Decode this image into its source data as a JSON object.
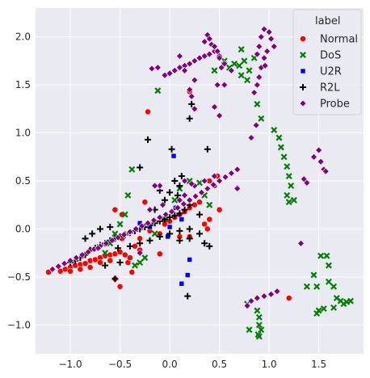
{
  "chart_data": {
    "type": "scatter",
    "title": "",
    "xlabel": "",
    "ylabel": "",
    "xlim": [
      -1.35,
      1.95
    ],
    "ylim": [
      -1.3,
      2.3
    ],
    "xticks": [
      -1.0,
      -0.5,
      0.0,
      0.5,
      1.0,
      1.5
    ],
    "xtick_labels": [
      "−1.0",
      "−0.5",
      "0.0",
      "0.5",
      "1.0",
      "1.5"
    ],
    "yticks": [
      -1.0,
      -0.5,
      0.0,
      0.5,
      1.0,
      1.5,
      2.0
    ],
    "ytick_labels": [
      "−1.0",
      "−0.5",
      "0.0",
      "0.5",
      "1.0",
      "1.5",
      "2.0"
    ],
    "grid": true,
    "background": "#eaeaf2",
    "legend": {
      "title": "label",
      "position": "top-right"
    },
    "series": [
      {
        "name": "Normal",
        "color": "#ff0000",
        "marker": "circle",
        "points": [
          [
            -1.22,
            -0.45
          ],
          [
            -1.1,
            -0.44
          ],
          [
            -1.05,
            -0.42
          ],
          [
            -1.0,
            -0.4
          ],
          [
            -0.95,
            -0.38
          ],
          [
            -0.9,
            -0.37
          ],
          [
            -0.85,
            -0.36
          ],
          [
            -0.8,
            -0.33
          ],
          [
            -0.75,
            -0.32
          ],
          [
            -0.7,
            -0.3
          ],
          [
            -0.65,
            -0.28
          ],
          [
            -0.6,
            -0.27
          ],
          [
            -0.55,
            -0.26
          ],
          [
            -0.5,
            -0.24
          ],
          [
            -1.0,
            -0.44
          ],
          [
            -0.9,
            -0.42
          ],
          [
            -0.8,
            -0.4
          ],
          [
            -0.7,
            -0.35
          ],
          [
            -0.6,
            -0.33
          ],
          [
            -0.45,
            -0.27
          ],
          [
            -0.42,
            -0.35
          ],
          [
            -0.4,
            -0.3
          ],
          [
            -0.38,
            -0.45
          ],
          [
            -0.5,
            -0.6
          ],
          [
            -0.55,
            -0.52
          ],
          [
            -0.48,
            -0.1
          ],
          [
            -0.48,
            0.15
          ],
          [
            -0.35,
            -0.18
          ],
          [
            -0.3,
            -0.1
          ],
          [
            -0.25,
            0.28
          ],
          [
            -0.2,
            -0.02
          ],
          [
            -0.1,
            -0.05
          ],
          [
            -0.05,
            0.05
          ],
          [
            0.0,
            0.08
          ],
          [
            0.05,
            0.12
          ],
          [
            0.1,
            0.15
          ],
          [
            0.15,
            0.18
          ],
          [
            0.2,
            0.22
          ],
          [
            0.25,
            0.25
          ],
          [
            0.3,
            0.28
          ],
          [
            0.35,
            0.05
          ],
          [
            0.4,
            0.1
          ],
          [
            0.4,
            0.5
          ],
          [
            0.45,
            0.45
          ],
          [
            0.48,
            0.55
          ],
          [
            0.5,
            0.2
          ],
          [
            0.38,
            0.0
          ],
          [
            -0.1,
            -0.26
          ],
          [
            0.1,
            -0.08
          ],
          [
            0.2,
            -0.08
          ],
          [
            -0.22,
            1.22
          ],
          [
            0.2,
            1.43
          ],
          [
            1.2,
            -0.72
          ],
          [
            -0.8,
            -0.22
          ],
          [
            -0.3,
            -0.22
          ],
          [
            -0.55,
            0.2
          ]
        ]
      },
      {
        "name": "DoS",
        "color": "#008000",
        "marker": "x",
        "points": [
          [
            -0.65,
            -0.25
          ],
          [
            -0.6,
            -0.15
          ],
          [
            -0.55,
            -0.05
          ],
          [
            -0.5,
            0.05
          ],
          [
            -0.45,
            0.15
          ],
          [
            -0.42,
            0.35
          ],
          [
            -0.38,
            0.62
          ],
          [
            -0.3,
            -0.35
          ],
          [
            -0.35,
            -0.38
          ],
          [
            -0.25,
            -0.3
          ],
          [
            -0.15,
            -0.05
          ],
          [
            -0.05,
            0.1
          ],
          [
            0.05,
            0.3
          ],
          [
            0.1,
            0.42
          ],
          [
            0.2,
            0.5
          ],
          [
            0.3,
            0.48
          ],
          [
            0.35,
            0.35
          ],
          [
            0.4,
            0.25
          ],
          [
            -0.12,
            1.44
          ],
          [
            0.45,
            1.65
          ],
          [
            0.55,
            1.75
          ],
          [
            0.65,
            1.72
          ],
          [
            0.7,
            1.7
          ],
          [
            0.75,
            1.75
          ],
          [
            0.8,
            1.65
          ],
          [
            0.85,
            1.78
          ],
          [
            0.6,
            1.68
          ],
          [
            0.72,
            1.6
          ],
          [
            0.78,
            1.55
          ],
          [
            0.72,
            1.87
          ],
          [
            0.88,
            1.3
          ],
          [
            0.92,
            1.15
          ],
          [
            1.05,
            1.03
          ],
          [
            1.1,
            0.95
          ],
          [
            1.12,
            0.85
          ],
          [
            1.15,
            0.75
          ],
          [
            1.18,
            0.65
          ],
          [
            1.2,
            0.55
          ],
          [
            1.22,
            0.45
          ],
          [
            1.18,
            0.35
          ],
          [
            1.2,
            0.28
          ],
          [
            1.25,
            0.3
          ],
          [
            1.52,
            -0.28
          ],
          [
            1.58,
            -0.28
          ],
          [
            1.6,
            -0.38
          ],
          [
            1.45,
            -0.48
          ],
          [
            1.38,
            -0.6
          ],
          [
            1.48,
            -0.6
          ],
          [
            1.6,
            -0.55
          ],
          [
            1.65,
            -0.6
          ],
          [
            1.5,
            -0.85
          ],
          [
            1.55,
            -0.83
          ],
          [
            1.65,
            -0.82
          ],
          [
            1.68,
            -0.72
          ],
          [
            1.72,
            -0.75
          ],
          [
            1.75,
            -0.78
          ],
          [
            1.78,
            -0.76
          ],
          [
            1.82,
            -0.75
          ],
          [
            1.48,
            -0.88
          ],
          [
            0.78,
            -0.78
          ],
          [
            0.8,
            -1.05
          ],
          [
            0.88,
            -0.85
          ],
          [
            0.9,
            -0.92
          ],
          [
            0.9,
            -1.0
          ],
          [
            0.92,
            -1.05
          ],
          [
            0.9,
            -1.12
          ],
          [
            0.89,
            -1.1
          ]
        ]
      },
      {
        "name": "U2R",
        "color": "#0000ff",
        "marker": "square",
        "points": [
          [
            0.04,
            0.76
          ],
          [
            0.18,
            -0.48
          ],
          [
            0.2,
            -0.32
          ],
          [
            0.12,
            -0.57
          ],
          [
            -0.3,
            0.06
          ],
          [
            -0.2,
            0.02
          ],
          [
            0.0,
            0.02
          ],
          [
            0.12,
            0.1
          ],
          [
            0.06,
            0.22
          ],
          [
            -0.02,
            -0.08
          ]
        ]
      },
      {
        "name": "R2L",
        "color": "#000000",
        "marker": "plus",
        "points": [
          [
            -1.0,
            -0.35
          ],
          [
            -0.95,
            -0.33
          ],
          [
            -0.9,
            -0.3
          ],
          [
            -0.85,
            -0.27
          ],
          [
            -0.8,
            -0.22
          ],
          [
            -0.75,
            -0.2
          ],
          [
            -0.7,
            -0.17
          ],
          [
            -0.65,
            -0.15
          ],
          [
            -0.6,
            -0.12
          ],
          [
            -0.55,
            -0.1
          ],
          [
            -0.5,
            -0.08
          ],
          [
            -0.45,
            -0.06
          ],
          [
            -0.4,
            -0.04
          ],
          [
            -0.35,
            -0.02
          ],
          [
            -0.3,
            0.0
          ],
          [
            -0.25,
            0.02
          ],
          [
            -0.2,
            0.04
          ],
          [
            -0.15,
            0.06
          ],
          [
            -0.1,
            0.08
          ],
          [
            -0.05,
            0.1
          ],
          [
            0.0,
            0.12
          ],
          [
            0.05,
            0.14
          ],
          [
            0.1,
            0.16
          ],
          [
            0.15,
            0.2
          ],
          [
            0.2,
            0.25
          ],
          [
            -0.85,
            -0.1
          ],
          [
            -0.78,
            -0.05
          ],
          [
            -0.7,
            0.0
          ],
          [
            -0.6,
            0.02
          ],
          [
            -0.52,
            -0.2
          ],
          [
            -0.4,
            -0.18
          ],
          [
            -0.3,
            -0.15
          ],
          [
            -0.2,
            -0.12
          ],
          [
            -0.1,
            -0.08
          ],
          [
            0.0,
            -0.05
          ],
          [
            0.1,
            -0.02
          ],
          [
            0.2,
            0.0
          ],
          [
            0.3,
            -0.05
          ],
          [
            0.35,
            -0.15
          ],
          [
            0.4,
            -0.18
          ],
          [
            0.1,
            -0.12
          ],
          [
            0.2,
            -0.1
          ],
          [
            0.0,
            0.38
          ],
          [
            0.05,
            0.5
          ],
          [
            0.1,
            0.45
          ],
          [
            0.08,
            0.35
          ],
          [
            0.15,
            0.35
          ],
          [
            0.12,
            0.55
          ],
          [
            0.02,
            0.83
          ],
          [
            0.38,
            0.83
          ],
          [
            -0.3,
            0.64
          ],
          [
            -0.22,
            0.93
          ],
          [
            0.2,
            1.15
          ],
          [
            0.22,
            1.3
          ],
          [
            -0.55,
            -0.52
          ],
          [
            0.18,
            -0.7
          ],
          [
            -0.65,
            -0.38
          ],
          [
            -0.5,
            -0.35
          ],
          [
            -0.15,
            0.2
          ],
          [
            -0.05,
            0.3
          ],
          [
            -0.1,
            0.4
          ],
          [
            0.3,
            0.15
          ]
        ]
      },
      {
        "name": "Probe",
        "color": "#800080",
        "marker": "diamond",
        "points": [
          [
            -1.18,
            -0.42
          ],
          [
            -1.12,
            -0.39
          ],
          [
            -1.06,
            -0.36
          ],
          [
            -1.0,
            -0.33
          ],
          [
            -0.94,
            -0.3
          ],
          [
            -0.88,
            -0.27
          ],
          [
            -0.82,
            -0.24
          ],
          [
            -0.76,
            -0.21
          ],
          [
            -0.7,
            -0.18
          ],
          [
            -0.64,
            -0.15
          ],
          [
            -0.58,
            -0.12
          ],
          [
            -0.52,
            -0.09
          ],
          [
            -0.46,
            -0.06
          ],
          [
            -0.4,
            -0.03
          ],
          [
            -0.34,
            0.0
          ],
          [
            -0.28,
            0.03
          ],
          [
            -0.22,
            0.06
          ],
          [
            -0.16,
            0.09
          ],
          [
            -0.1,
            0.12
          ],
          [
            -0.04,
            0.15
          ],
          [
            0.02,
            0.18
          ],
          [
            0.08,
            0.22
          ],
          [
            0.14,
            0.26
          ],
          [
            0.2,
            0.3
          ],
          [
            0.26,
            0.34
          ],
          [
            0.32,
            0.38
          ],
          [
            0.38,
            0.42
          ],
          [
            0.44,
            0.46
          ],
          [
            0.5,
            0.5
          ],
          [
            0.56,
            0.54
          ],
          [
            0.62,
            0.58
          ],
          [
            0.68,
            0.62
          ],
          [
            0.1,
            0.3
          ],
          [
            0.15,
            0.35
          ],
          [
            0.25,
            0.45
          ],
          [
            0.35,
            0.5
          ],
          [
            0.45,
            0.55
          ],
          [
            0.15,
            0.5
          ],
          [
            0.22,
            0.47
          ],
          [
            0.68,
            0.43
          ],
          [
            -0.1,
            0.45
          ],
          [
            -0.07,
            0.25
          ],
          [
            -0.2,
            0.2
          ],
          [
            -0.15,
            0.45
          ],
          [
            -0.18,
            1.67
          ],
          [
            -0.12,
            1.68
          ],
          [
            -0.05,
            1.6
          ],
          [
            0.0,
            1.62
          ],
          [
            0.05,
            1.65
          ],
          [
            0.1,
            1.68
          ],
          [
            0.15,
            1.7
          ],
          [
            0.2,
            1.72
          ],
          [
            0.25,
            1.75
          ],
          [
            0.3,
            1.78
          ],
          [
            0.35,
            1.8
          ],
          [
            0.4,
            1.82
          ],
          [
            0.45,
            1.85
          ],
          [
            0.5,
            1.8
          ],
          [
            0.55,
            1.72
          ],
          [
            0.62,
            1.65
          ],
          [
            0.1,
            1.8
          ],
          [
            0.15,
            1.65
          ],
          [
            0.25,
            1.55
          ],
          [
            0.2,
            1.45
          ],
          [
            0.22,
            1.38
          ],
          [
            0.35,
            1.95
          ],
          [
            0.38,
            2.02
          ],
          [
            0.4,
            1.98
          ],
          [
            0.42,
            1.92
          ],
          [
            0.45,
            1.9
          ],
          [
            0.48,
            1.85
          ],
          [
            0.5,
            1.78
          ],
          [
            0.52,
            1.68
          ],
          [
            0.48,
            1.5
          ],
          [
            0.55,
            1.5
          ],
          [
            0.45,
            1.27
          ],
          [
            0.5,
            1.18
          ],
          [
            0.25,
            1.25
          ],
          [
            0.85,
            1.42
          ],
          [
            0.88,
            1.5
          ],
          [
            0.9,
            1.58
          ],
          [
            0.92,
            1.68
          ],
          [
            0.95,
            1.78
          ],
          [
            0.98,
            1.85
          ],
          [
            0.9,
            1.9
          ],
          [
            0.92,
            2.0
          ],
          [
            0.95,
            2.08
          ],
          [
            1.0,
            2.05
          ],
          [
            1.02,
            1.98
          ],
          [
            1.05,
            1.9
          ],
          [
            0.88,
            1.82
          ],
          [
            0.96,
            1.7
          ],
          [
            0.87,
            1.08
          ],
          [
            0.78,
            -0.8
          ],
          [
            0.82,
            -0.75
          ],
          [
            0.88,
            -0.72
          ],
          [
            0.95,
            -0.7
          ],
          [
            1.02,
            -0.68
          ],
          [
            1.08,
            -0.65
          ],
          [
            1.35,
            0.52
          ],
          [
            1.38,
            0.48
          ],
          [
            1.45,
            0.75
          ],
          [
            1.5,
            0.82
          ],
          [
            1.52,
            0.7
          ],
          [
            1.55,
            0.62
          ],
          [
            1.57,
            0.6
          ],
          [
            1.32,
            -0.15
          ],
          [
            0.68,
            0.42
          ],
          [
            0.82,
            0.95
          ],
          [
            -0.72,
            -0.2
          ],
          [
            -0.3,
            -0.25
          ]
        ]
      }
    ]
  }
}
